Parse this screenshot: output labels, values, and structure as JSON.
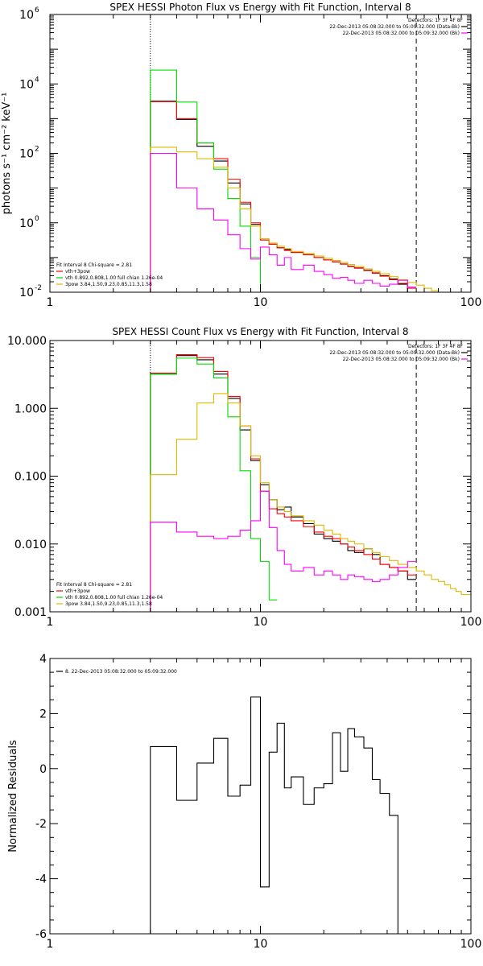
{
  "chart_data": [
    {
      "type": "line",
      "title": "SPEX HESSI Photon Flux vs Energy with Fit Function, Interval 8",
      "ylabel": "photons s⁻¹ cm⁻² keV⁻¹",
      "xscale": "log",
      "yscale": "log",
      "xlim": [
        1,
        100
      ],
      "ylim": [
        0.01,
        1000000
      ],
      "x_ticks": [
        1,
        10,
        100
      ],
      "x_tick_labels": [
        "1",
        "10",
        "100"
      ],
      "y_ticks": [
        0.01,
        1,
        100,
        10000,
        1000000
      ],
      "y_tick_labels": [
        {
          "base": "10",
          "exp": "-2"
        },
        {
          "base": "10",
          "exp": "0"
        },
        {
          "base": "10",
          "exp": "2"
        },
        {
          "base": "10",
          "exp": "4"
        },
        {
          "base": "10",
          "exp": "6"
        }
      ],
      "legend_right": {
        "header": "Detectors: 1F 3F 4F 8F",
        "lines": [
          {
            "text": "22-Dec-2013 05:08:32.000 to 05:09:32.000 (Data-Bk)",
            "color": "#000000"
          },
          {
            "text": "22-Dec-2013 05:08:32.000 to 05:09:32.000 (Bk)",
            "color": "#ff00ff"
          }
        ]
      },
      "legend_left": {
        "header": "Fit Interval 8   Chi-square = 2.81",
        "lines": [
          {
            "text": "vth+3pow",
            "color": "#ff0000"
          },
          {
            "text": "vth 0.892,0.808,1.00  full chian 1.26e-04",
            "color": "#00dd00"
          },
          {
            "text": "3pow 3.84,1.50,9.23,0.85,11.3,1.58",
            "color": "#ddbb00"
          }
        ]
      },
      "vlines": [
        {
          "x": 3.0,
          "style": "dotted"
        },
        {
          "x": 55,
          "style": "dashed"
        }
      ],
      "series": [
        {
          "color": "#000000",
          "edges": [
            3,
            4,
            5,
            6,
            7,
            8,
            9,
            10,
            11,
            12,
            13,
            14,
            16,
            18,
            20,
            22,
            24,
            26,
            28,
            31,
            34,
            37,
            41,
            45,
            50,
            55
          ],
          "values": [
            3200,
            950,
            160,
            60,
            14,
            3.5,
            0.9,
            0.32,
            0.24,
            0.19,
            0.17,
            0.14,
            0.12,
            0.1,
            0.085,
            0.075,
            0.065,
            0.055,
            0.05,
            0.043,
            0.036,
            0.03,
            0.024,
            0.017,
            0.009
          ]
        },
        {
          "color": "#ff0000",
          "edges": [
            3,
            4,
            5,
            6,
            7,
            8,
            9,
            10,
            11,
            12,
            13,
            14,
            16,
            18,
            20,
            22,
            24,
            26,
            28,
            31,
            34,
            37,
            41,
            45,
            50,
            55
          ],
          "values": [
            3100,
            1000,
            200,
            70,
            18,
            3.9,
            1.0,
            0.32,
            0.24,
            0.19,
            0.16,
            0.14,
            0.12,
            0.1,
            0.085,
            0.074,
            0.064,
            0.056,
            0.049,
            0.042,
            0.035,
            0.029,
            0.023,
            0.018,
            0.013
          ]
        },
        {
          "color": "#00dd00",
          "edges": [
            3,
            4,
            5,
            6,
            7,
            8,
            9,
            10,
            11
          ],
          "values": [
            25000,
            3000,
            200,
            35,
            5,
            0.8,
            0.1,
            0.01
          ]
        },
        {
          "color": "#ddbb00",
          "edges": [
            3,
            4,
            5,
            6,
            7,
            8,
            9,
            10,
            11,
            12,
            13,
            14,
            16,
            18,
            20,
            22,
            24,
            26,
            28,
            31,
            34,
            37,
            41,
            45,
            50,
            55,
            60,
            65,
            70,
            75,
            80,
            85
          ],
          "values": [
            150,
            110,
            70,
            40,
            10,
            2.5,
            0.8,
            0.35,
            0.26,
            0.21,
            0.18,
            0.15,
            0.13,
            0.11,
            0.095,
            0.082,
            0.072,
            0.063,
            0.055,
            0.047,
            0.04,
            0.034,
            0.028,
            0.023,
            0.019,
            0.016,
            0.013,
            0.011,
            0.0095,
            0.0085,
            0.008
          ]
        },
        {
          "color": "#ff00ff",
          "edges": [
            3,
            4,
            5,
            6,
            7,
            8,
            9,
            10,
            11,
            12,
            13,
            14,
            16,
            18,
            20,
            22,
            24,
            26,
            28,
            31,
            34,
            37,
            41,
            45,
            50,
            55
          ],
          "values": [
            100,
            10,
            2.5,
            1.2,
            0.45,
            0.18,
            0.09,
            0.2,
            0.12,
            0.06,
            0.1,
            0.045,
            0.06,
            0.04,
            0.032,
            0.025,
            0.027,
            0.022,
            0.018,
            0.022,
            0.018,
            0.015,
            0.017,
            0.022,
            0.014
          ]
        }
      ]
    },
    {
      "type": "line",
      "title": "SPEX HESSI Count Flux vs Energy with Fit Function, Interval 8",
      "xscale": "log",
      "yscale": "log",
      "xlim": [
        1,
        100
      ],
      "ylim": [
        0.001,
        10
      ],
      "x_ticks": [
        1,
        10,
        100
      ],
      "x_tick_labels": [
        "1",
        "10",
        "100"
      ],
      "y_ticks": [
        0.001,
        0.01,
        0.1,
        1,
        10
      ],
      "y_tick_labels": [
        "0.001",
        "0.010",
        "0.100",
        "1.000",
        "10.000"
      ],
      "legend_right": {
        "header": "Detectors: 1F 3F 4F 8F",
        "lines": [
          {
            "text": "22-Dec-2013 05:08:32.000 to 05:09:32.000 (Data-Bk)",
            "color": "#000000"
          },
          {
            "text": "22-Dec-2013 05:08:32.000 to 05:09:32.000 (Bk)",
            "color": "#ff00ff"
          }
        ]
      },
      "legend_left": {
        "header": "Fit Interval 8   Chi-square = 2.81",
        "lines": [
          {
            "text": "vth+3pow",
            "color": "#ff0000"
          },
          {
            "text": "vth 0.892,0.808,1.00  full chian 1.26e-04",
            "color": "#00dd00"
          },
          {
            "text": "3pow 3.84,1.50,9.23,0.85,11.3,1.58",
            "color": "#ddbb00"
          }
        ]
      },
      "vlines": [
        {
          "x": 3.0,
          "style": "dotted"
        },
        {
          "x": 55,
          "style": "dashed"
        }
      ],
      "series": [
        {
          "color": "#000000",
          "edges": [
            3,
            4,
            5,
            6,
            7,
            8,
            9,
            10,
            11,
            12,
            13,
            14,
            16,
            18,
            20,
            22,
            24,
            26,
            28,
            31,
            34,
            37,
            41,
            45,
            50,
            55
          ],
          "values": [
            3.2,
            6.0,
            5.2,
            3.2,
            1.4,
            0.48,
            0.17,
            0.075,
            0.045,
            0.032,
            0.035,
            0.025,
            0.02,
            0.014,
            0.012,
            0.011,
            0.01,
            0.008,
            0.0075,
            0.0085,
            0.007,
            0.005,
            0.0045,
            0.004,
            0.003
          ]
        },
        {
          "color": "#ff0000",
          "edges": [
            3,
            4,
            5,
            6,
            7,
            8,
            9,
            10,
            11,
            12,
            13,
            14,
            16,
            18,
            20,
            22,
            24,
            26,
            28,
            31,
            34,
            37,
            41,
            45,
            50,
            55
          ],
          "values": [
            3.3,
            6.2,
            5.6,
            3.5,
            1.5,
            0.55,
            0.18,
            0.06,
            0.033,
            0.028,
            0.025,
            0.022,
            0.018,
            0.015,
            0.013,
            0.012,
            0.01,
            0.009,
            0.008,
            0.007,
            0.006,
            0.005,
            0.0045,
            0.004,
            0.0035
          ]
        },
        {
          "color": "#00dd00",
          "edges": [
            3,
            4,
            5,
            6,
            7,
            8,
            9,
            10,
            11,
            12
          ],
          "values": [
            3.2,
            5.5,
            4.5,
            2.8,
            0.75,
            0.12,
            0.012,
            0.0055,
            0.0015
          ]
        },
        {
          "color": "#ddbb00",
          "edges": [
            3,
            4,
            5,
            6,
            7,
            8,
            9,
            10,
            11,
            12,
            13,
            14,
            16,
            18,
            20,
            22,
            24,
            26,
            28,
            31,
            34,
            37,
            41,
            45,
            50,
            55,
            60,
            65,
            70,
            75,
            80,
            85,
            90,
            100
          ],
          "values": [
            0.105,
            0.35,
            1.2,
            1.65,
            1.2,
            0.55,
            0.2,
            0.08,
            0.045,
            0.035,
            0.03,
            0.026,
            0.022,
            0.019,
            0.016,
            0.014,
            0.012,
            0.011,
            0.01,
            0.0085,
            0.0075,
            0.0065,
            0.0057,
            0.005,
            0.0045,
            0.004,
            0.0035,
            0.003,
            0.0028,
            0.0025,
            0.0022,
            0.002,
            0.0018
          ]
        },
        {
          "color": "#ff00ff",
          "edges": [
            3,
            4,
            5,
            6,
            7,
            8,
            9,
            10,
            11,
            12,
            13,
            14,
            16,
            18,
            20,
            22,
            24,
            26,
            28,
            31,
            34,
            37,
            41,
            45,
            50,
            55
          ],
          "values": [
            0.021,
            0.015,
            0.013,
            0.012,
            0.013,
            0.016,
            0.022,
            0.06,
            0.0175,
            0.008,
            0.005,
            0.004,
            0.0045,
            0.0035,
            0.004,
            0.0035,
            0.003,
            0.0035,
            0.0033,
            0.003,
            0.0028,
            0.003,
            0.0035,
            0.0045,
            0.0055
          ]
        }
      ]
    },
    {
      "type": "line",
      "title": "",
      "ylabel": "Normalized Residuals",
      "xscale": "log",
      "yscale": "linear",
      "xlim": [
        1,
        100
      ],
      "ylim": [
        -6,
        4
      ],
      "x_ticks": [
        1,
        10,
        100
      ],
      "x_tick_labels": [
        "1",
        "10",
        "100"
      ],
      "y_ticks": [
        -6,
        -4,
        -2,
        0,
        2,
        4
      ],
      "y_tick_labels": [
        "-6",
        "-4",
        "-2",
        "0",
        "2",
        "4"
      ],
      "legend_left": {
        "header": "",
        "lines": [
          {
            "text": "8. 22-Dec-2013 05:08:32.000 to 05:09:32.000",
            "color": "#000000"
          }
        ]
      },
      "series": [
        {
          "color": "#000000",
          "edges": [
            3,
            4,
            5,
            6,
            7,
            8,
            9,
            10,
            11,
            12,
            13,
            14,
            16,
            18,
            20,
            22,
            24,
            26,
            28,
            31,
            34,
            37,
            41,
            45,
            50,
            55
          ],
          "values": [
            0.8,
            -1.15,
            0.2,
            1.1,
            -1.0,
            -0.6,
            2.6,
            -4.3,
            0.6,
            1.65,
            -0.7,
            -0.3,
            -1.3,
            -0.7,
            -0.55,
            1.3,
            -0.1,
            1.45,
            1.15,
            0.75,
            -0.4,
            -0.9,
            -1.7,
            -6,
            -6
          ]
        }
      ]
    }
  ]
}
